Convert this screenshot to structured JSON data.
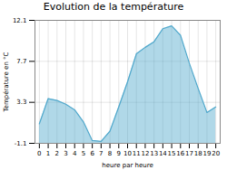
{
  "chart_data": {
    "type": "area",
    "title": "Evolution de la température",
    "x_label": "heure par heure",
    "y_label": "Température en °C",
    "x": [
      0,
      1,
      2,
      3,
      4,
      5,
      6,
      7,
      8,
      9,
      10,
      11,
      12,
      13,
      14,
      15,
      16,
      17,
      18,
      19,
      20
    ],
    "values": [
      1.0,
      3.7,
      3.5,
      3.1,
      2.5,
      1.2,
      -0.8,
      -0.9,
      0.2,
      2.8,
      5.5,
      8.5,
      9.2,
      9.8,
      11.2,
      11.5,
      10.5,
      7.5,
      4.8,
      2.2,
      2.8
    ],
    "color": "#50a8cc",
    "xlim": [
      -0.5,
      20.5
    ],
    "xticks": [
      0,
      1,
      2,
      3,
      4,
      5,
      6,
      7,
      8,
      9,
      10,
      11,
      12,
      13,
      14,
      15,
      16,
      17,
      18,
      19,
      20
    ],
    "ylim": [
      -1.1,
      12.1
    ],
    "yticks": [
      -1.1,
      3.3,
      7.7,
      12.1
    ],
    "grid": true
  }
}
